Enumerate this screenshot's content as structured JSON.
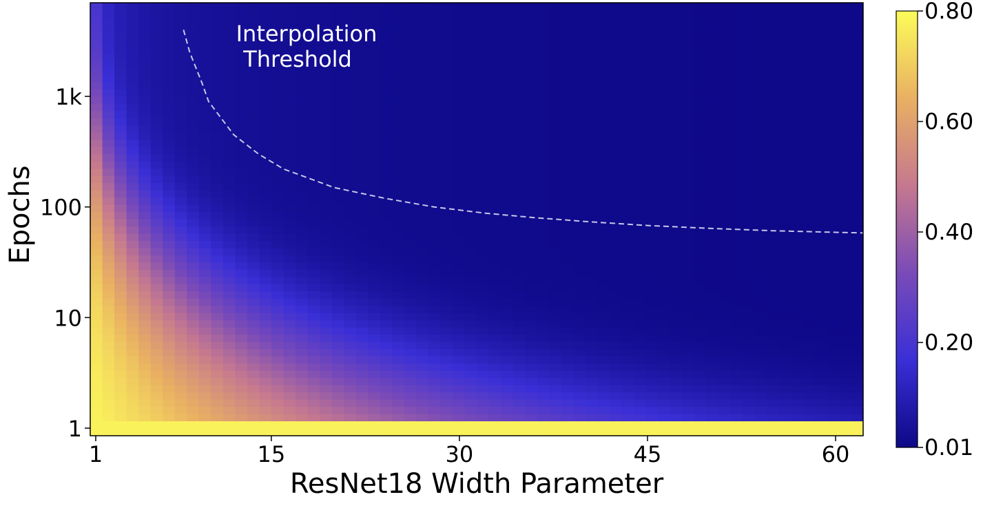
{
  "chart_data": {
    "type": "heatmap",
    "xlabel": "ResNet18 Width Parameter",
    "ylabel": "Epochs",
    "x_range": [
      1,
      64
    ],
    "y_scale": "log",
    "y_range": [
      1,
      4000
    ],
    "x_ticks": [
      {
        "value": 1,
        "label": "1"
      },
      {
        "value": 15,
        "label": "15"
      },
      {
        "value": 30,
        "label": "30"
      },
      {
        "value": 45,
        "label": "45"
      },
      {
        "value": 60,
        "label": "60"
      }
    ],
    "y_ticks": [
      {
        "value": 1,
        "label": "1"
      },
      {
        "value": 10,
        "label": "10"
      },
      {
        "value": 100,
        "label": "100"
      },
      {
        "value": 1000,
        "label": "1k"
      }
    ],
    "colorbar": {
      "min": 0.01,
      "max": 0.8,
      "ticks": [
        {
          "value": 0.01,
          "label": "0.01"
        },
        {
          "value": 0.2,
          "label": "0.20"
        },
        {
          "value": 0.4,
          "label": "0.40"
        },
        {
          "value": 0.6,
          "label": "0.60"
        },
        {
          "value": 0.8,
          "label": "0.80"
        }
      ],
      "colormap": [
        "#0d0887",
        "#3a2fd6",
        "#7a4bb8",
        "#c5788f",
        "#e9b062",
        "#fcfc5a"
      ]
    },
    "annotation": {
      "line1": "Interpolation",
      "line2": "Threshold"
    },
    "threshold_line": {
      "color": "#c8c8e8",
      "style": "dashed",
      "points": [
        [
          8,
          4000
        ],
        [
          8.5,
          2500
        ],
        [
          9.5,
          1300
        ],
        [
          10,
          900
        ],
        [
          12,
          450
        ],
        [
          14,
          300
        ],
        [
          16,
          220
        ],
        [
          20,
          150
        ],
        [
          24,
          120
        ],
        [
          28,
          100
        ],
        [
          32,
          88
        ],
        [
          36,
          80
        ],
        [
          40,
          74
        ],
        [
          45,
          68
        ],
        [
          50,
          64
        ],
        [
          55,
          61
        ],
        [
          60,
          59
        ],
        [
          63,
          58
        ]
      ]
    }
  }
}
